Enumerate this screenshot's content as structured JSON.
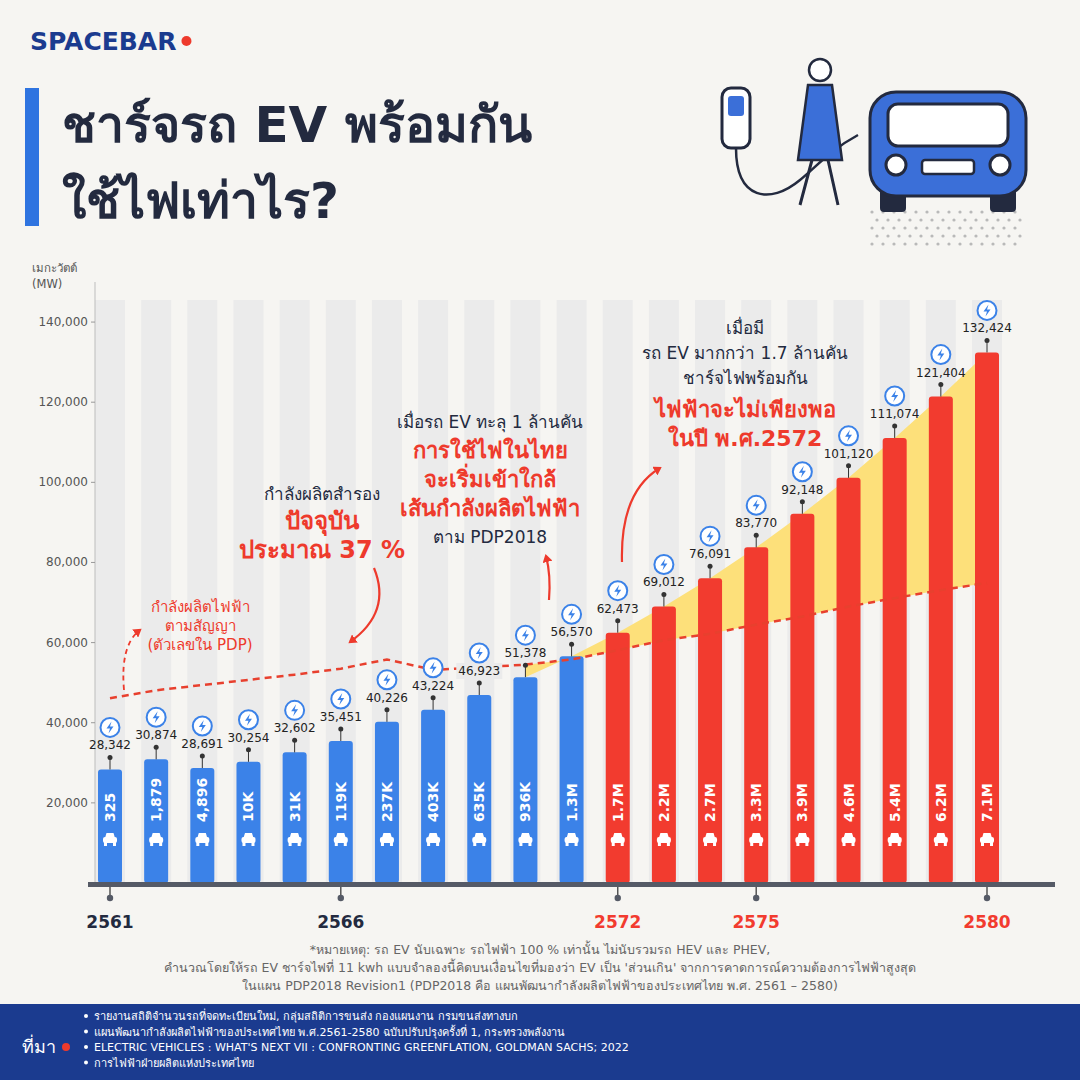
{
  "header": {
    "brand": "SPACEBAR"
  },
  "chart_data": {
    "type": "bar",
    "title": [
      "ชาร์จรถ EV พร้อมกัน",
      "ใช้ไฟเท่าไร?"
    ],
    "ylabel": [
      "เมกะวัตต์",
      "(MW)"
    ],
    "categories": [
      "2561",
      null,
      null,
      null,
      null,
      "2566",
      null,
      null,
      null,
      null,
      null,
      "2572",
      null,
      null,
      "2575",
      null,
      null,
      null,
      null,
      "2580"
    ],
    "series": [
      {
        "type": "bar",
        "colors": [
          "#3b82e8",
          "#3b82e8",
          "#3b82e8",
          "#3b82e8",
          "#3b82e8",
          "#3b82e8",
          "#3b82e8",
          "#3b82e8",
          "#3b82e8",
          "#3b82e8",
          "#3b82e8",
          "#f23b2f",
          "#f23b2f",
          "#f23b2f",
          "#f23b2f",
          "#f23b2f",
          "#f23b2f",
          "#f23b2f",
          "#f23b2f",
          "#f23b2f"
        ],
        "values": [
          28342,
          30874,
          28691,
          30254,
          32602,
          35451,
          40226,
          43224,
          46923,
          51378,
          56570,
          62473,
          69012,
          76091,
          83770,
          92148,
          101120,
          111074,
          121404,
          132424
        ],
        "value_labels": [
          "28,342",
          "30,874",
          "28,691",
          "30,254",
          "32,602",
          "35,451",
          "40,226",
          "43,224",
          "46,923",
          "51,378",
          "56,570",
          "62,473",
          "69,012",
          "76,091",
          "83,770",
          "92,148",
          "101,120",
          "111,074",
          "121,404",
          "132,424"
        ],
        "data_labels": true
      },
      {
        "type": "line",
        "color": "#e8402e",
        "line_style": "dashed",
        "values": [
          46100,
          48100,
          49400,
          50700,
          52000,
          53500,
          55800,
          53200,
          53800,
          54500,
          55800,
          58100,
          60600,
          62200,
          64500,
          66500,
          69000,
          71100,
          73100,
          74900
        ]
      }
    ],
    "ev_vehicles": {
      "values": [
        325,
        1879,
        4896,
        10000,
        31000,
        119000,
        237000,
        403000,
        635000,
        936000,
        1300000,
        1700000,
        2200000,
        2700000,
        3300000,
        3900000,
        4600000,
        5400000,
        6200000,
        7100000
      ],
      "value_labels": [
        "325",
        "1,879",
        "4,896",
        "10K",
        "31K",
        "119K",
        "237K",
        "403K",
        "635K",
        "936K",
        "1.3M",
        "1.7M",
        "2.2M",
        "2.7M",
        "3.3M",
        "3.9M",
        "4.6M",
        "5.4M",
        "6.2M",
        "7.1M"
      ]
    },
    "ylim": [
      0,
      150000
    ],
    "yticks": [
      {
        "value": 20000,
        "label": "20,000"
      },
      {
        "value": 40000,
        "label": "40,000"
      },
      {
        "value": 60000,
        "label": "60,000"
      },
      {
        "value": 80000,
        "label": "80,000"
      },
      {
        "value": 100000,
        "label": "100,000"
      },
      {
        "value": 120000,
        "label": "120,000"
      },
      {
        "value": 140000,
        "label": "140,000"
      }
    ],
    "grid": false,
    "annotations": [
      {
        "lines": [
          "กำลังผลิตไฟฟ้า",
          "ตามสัญญา",
          "(ตัวเลขใน PDP)"
        ]
      },
      {
        "lines": [
          "กำลังผลิตสำรอง",
          "ปัจจุบัน",
          "ประมาณ 37 %"
        ]
      },
      {
        "lines": [
          "เมื่อรถ EV ทะลุ 1 ล้านคัน",
          "การใช้ไฟในไทย",
          "จะเริ่มเข้าใกล้",
          "เส้นกำลังผลิตไฟฟ้า",
          "ตาม PDP2018"
        ]
      },
      {
        "lines": [
          "เมื่อมี",
          "รถ EV มากกว่า 1.7 ล้านคัน",
          "ชาร์จไฟพร้อมกัน",
          "ไฟฟ้าจะไม่เพียงพอ",
          "ในปี พ.ศ.2572"
        ]
      }
    ]
  },
  "notes": [
    "*หมายเหตุ: รถ EV นับเฉพาะ รถไฟฟ้า 100 % เท่านั้น ไม่นับรวมรถ HEV และ PHEV,",
    "คำนวณโดยให้รถ EV ชาร์จไฟที่ 11 kwh แบบจำลองนี้คิดบนเงื่อนไขที่มองว่า EV เป็น 'ส่วนเกิน' จากการคาดการณ์ความต้องการไฟฟ้าสูงสุด",
    "ในแผน PDP2018 Revision1 (PDP2018 คือ แผนพัฒนากำลังผลิตไฟฟ้าของประเทศไทย พ.ศ. 2561 – 2580)"
  ],
  "sources": {
    "label": "ที่มา",
    "items": [
      "รายงานสถิติจำนวนรถที่จดทะเบียนใหม่, กลุ่มสถิติการขนส่ง กองแผนงาน กรมขนส่งทางบก",
      "แผนพัฒนากำลังผลิตไฟฟ้าของประเทศไทย พ.ศ.2561-2580 ฉบับปรับปรุงครั้งที่ 1, กระทรวงพลังงาน",
      "ELECTRIC VEHICLES : WHAT'S NEXT VII : CONFRONTING GREENFLATION, GOLDMAN SACHS; 2022",
      "การไฟฟ้าฝ่ายผลิตแห่งประเทศไทย"
    ]
  }
}
